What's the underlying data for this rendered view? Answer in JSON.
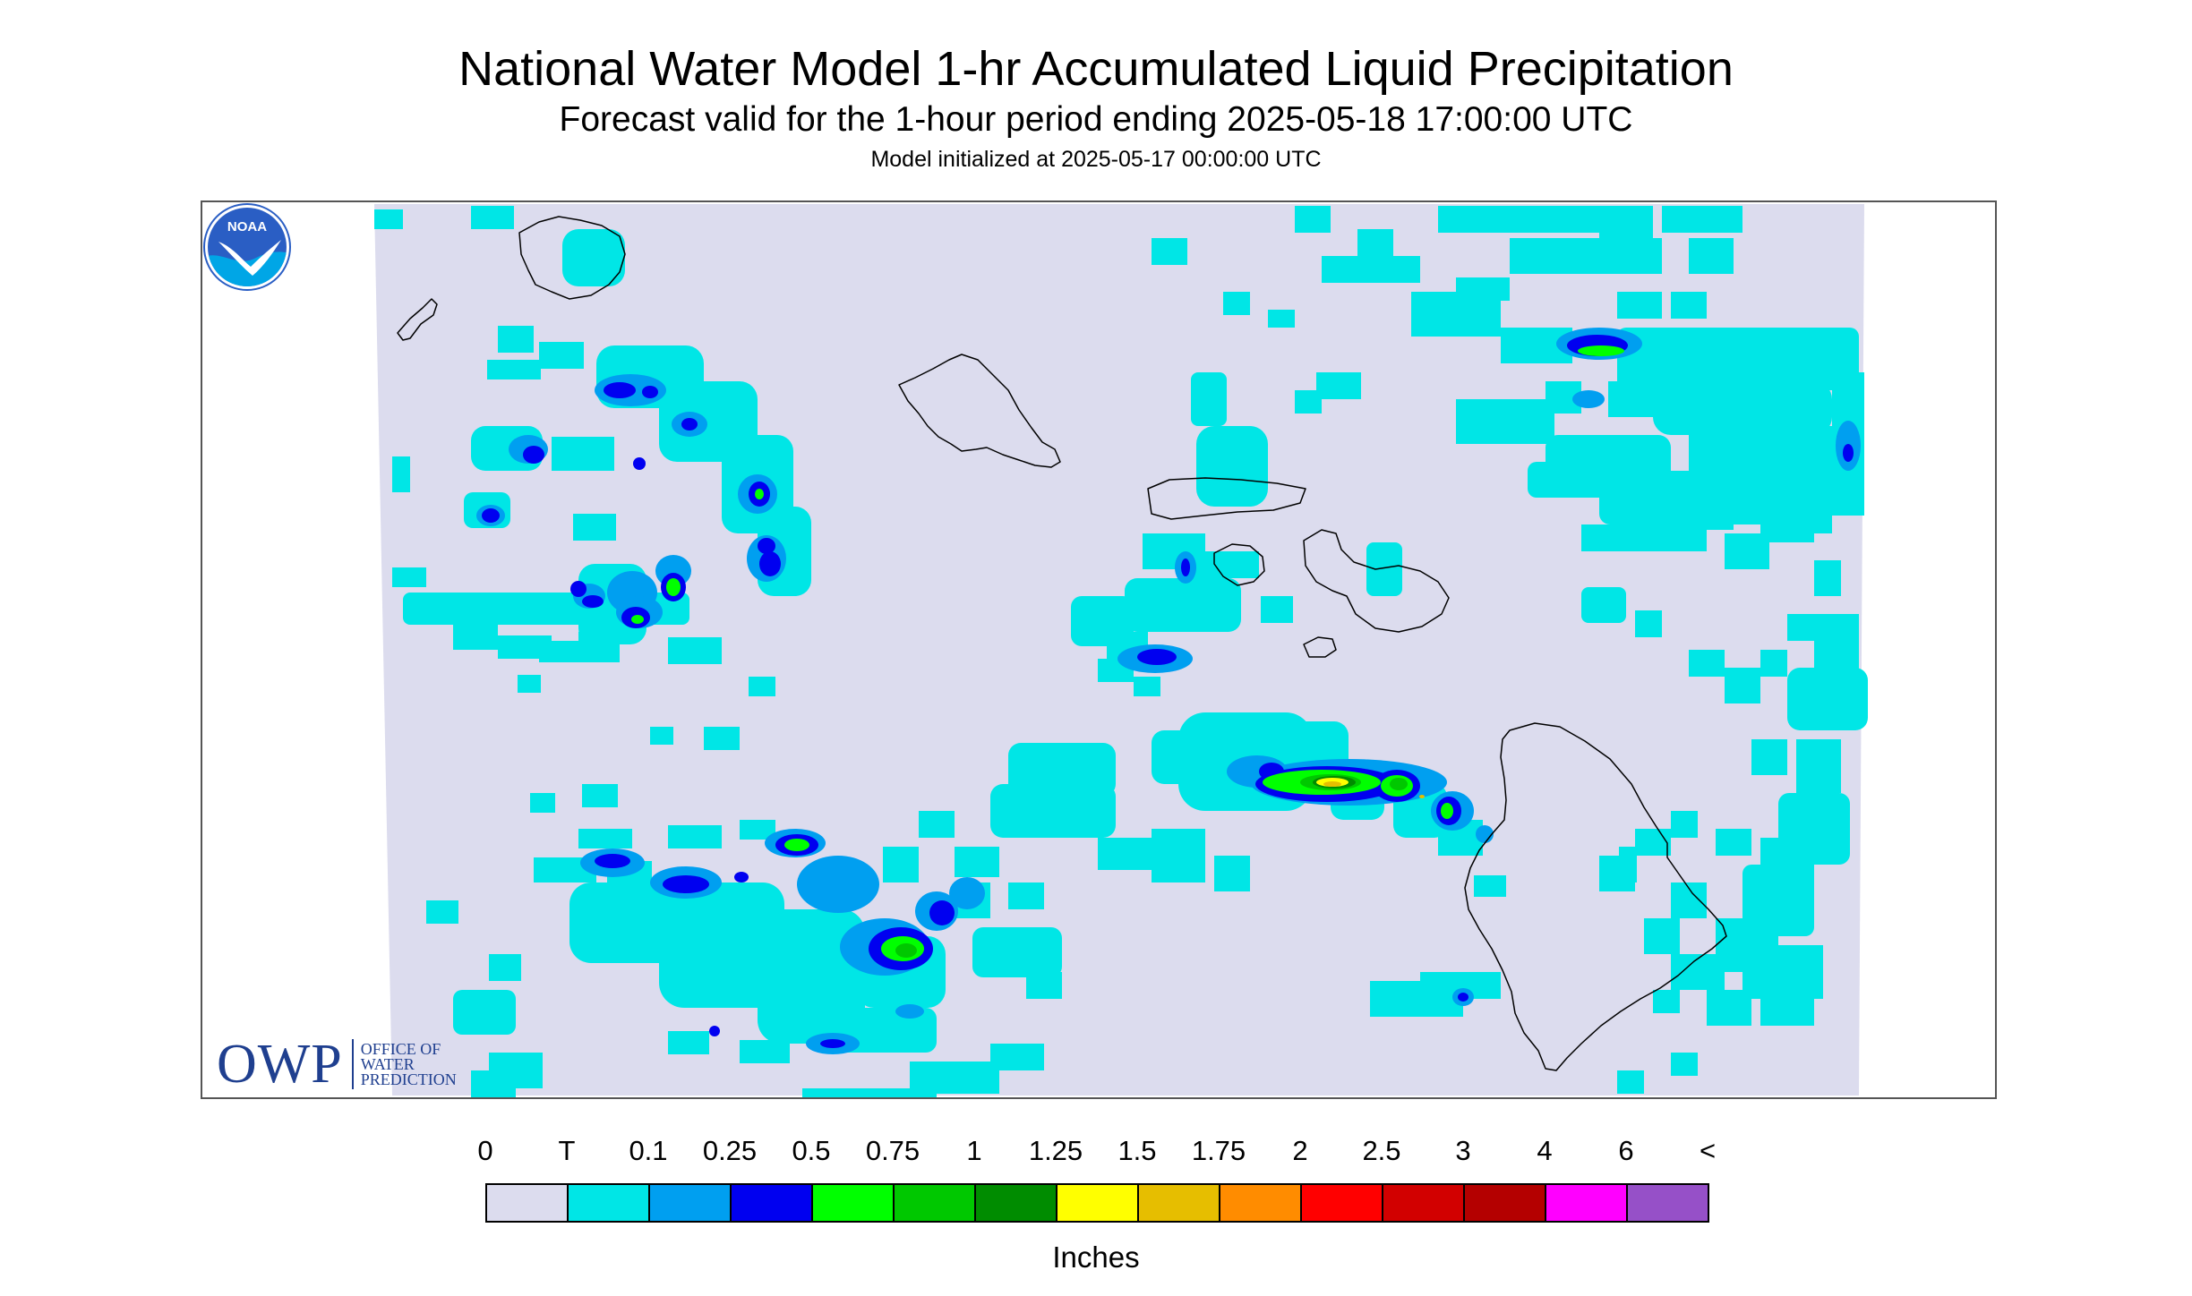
{
  "title": "National Water Model 1-hr Accumulated Liquid Precipitation",
  "subtitle": "Forecast valid for the 1-hour period ending 2025-05-18 17:00:00 UTC",
  "init_text": "Model initialized at 2025-05-17 00:00:00 UTC",
  "map": {
    "background_color": "#ffffff",
    "domain_fill_color": "#dcdcee",
    "coastline_color": "#000000",
    "precip_areas": [
      {
        "category": "T",
        "color": "#00e6e6"
      },
      {
        "category": "0.1",
        "color": "#009ff0"
      },
      {
        "category": "0.25",
        "color": "#0000f0"
      },
      {
        "category": "0.5",
        "color": "#00ff00"
      },
      {
        "category": "0.75",
        "color": "#00c800"
      },
      {
        "category": "1",
        "color": "#008c00"
      },
      {
        "category": "1.25",
        "color": "#ffff00"
      },
      {
        "category": "1.5",
        "color": "#e6be00"
      }
    ]
  },
  "logos": {
    "owp_letters": "OWP",
    "owp_words": [
      "OFFICE OF",
      "WATER",
      "PREDICTION"
    ],
    "owp_color": "#1f3f8f",
    "noaa_text": "NOAA",
    "noaa_colors": {
      "sky": "#2a5ec4",
      "water": "#00a6e6",
      "bird": "#ffffff"
    }
  },
  "legend": {
    "labels": [
      "0",
      "T",
      "0.1",
      "0.25",
      "0.5",
      "0.75",
      "1",
      "1.25",
      "1.5",
      "1.75",
      "2",
      "2.5",
      "3",
      "4",
      "6",
      "<"
    ],
    "colors": [
      "#dcdcee",
      "#00e6e6",
      "#009ff0",
      "#0000f0",
      "#00ff00",
      "#00c800",
      "#008c00",
      "#ffff00",
      "#e6be00",
      "#ff8c00",
      "#ff0000",
      "#d20000",
      "#b40000",
      "#ff00ff",
      "#9650c8"
    ],
    "units": "Inches"
  }
}
